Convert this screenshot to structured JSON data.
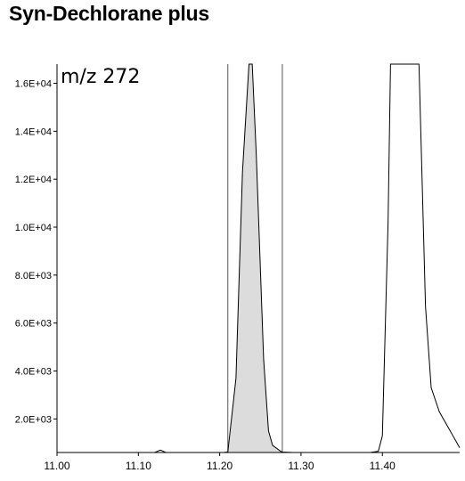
{
  "chart_data": {
    "type": "line",
    "title": "Syn-Dechlorane plus",
    "annotation": "m/z 272",
    "xlabel": "",
    "ylabel": "",
    "xlim": [
      11.0,
      11.495
    ],
    "ylim": [
      600,
      16800
    ],
    "x_ticks": [
      {
        "value": 11.0,
        "label": "11.00"
      },
      {
        "value": 11.1,
        "label": "11.10"
      },
      {
        "value": 11.2,
        "label": "11.20"
      },
      {
        "value": 11.3,
        "label": "11.30"
      },
      {
        "value": 11.4,
        "label": "11.40"
      }
    ],
    "y_ticks": [
      {
        "value": 2000,
        "label": "2.0E+03"
      },
      {
        "value": 4000,
        "label": "4.0E+03"
      },
      {
        "value": 6000,
        "label": "6.0E+03"
      },
      {
        "value": 8000,
        "label": "8.0E+03"
      },
      {
        "value": 10000,
        "label": "1.0E+04"
      },
      {
        "value": 12000,
        "label": "1.2E+04"
      },
      {
        "value": 14000,
        "label": "1.4E+04"
      },
      {
        "value": 16000,
        "label": "1.6E+04"
      }
    ],
    "integration_bounds": [
      11.21,
      11.277
    ],
    "series": [
      {
        "x": [
          11.0,
          11.05,
          11.1,
          11.12,
          11.127,
          11.134,
          11.15,
          11.18,
          11.205,
          11.21,
          11.22,
          11.228,
          11.236,
          11.24,
          11.245,
          11.254,
          11.26,
          11.265,
          11.275,
          11.277,
          11.29,
          11.32,
          11.35,
          11.385,
          11.395,
          11.4,
          11.407,
          11.41,
          11.417,
          11.43,
          11.44,
          11.445,
          11.453,
          11.46,
          11.47,
          11.48,
          11.49,
          11.495
        ],
        "y": [
          600,
          600,
          600,
          600,
          700,
          600,
          600,
          600,
          600,
          620,
          3700,
          12300,
          16800,
          16800,
          13000,
          4500,
          1500,
          900,
          650,
          620,
          600,
          600,
          600,
          600,
          650,
          1300,
          10200,
          16800,
          16800,
          16800,
          16800,
          16800,
          6700,
          3300,
          2300,
          1700,
          1100,
          800
        ]
      }
    ],
    "shaded_region": {
      "x": [
        11.21,
        11.22,
        11.228,
        11.236,
        11.24,
        11.245,
        11.254,
        11.26,
        11.265,
        11.275,
        11.277
      ],
      "y": [
        620,
        3700,
        12300,
        16800,
        16800,
        13000,
        4500,
        1500,
        900,
        650,
        620
      ]
    },
    "colors": {
      "line": "#000000",
      "fill": "#dcdcdc",
      "axis": "#000000",
      "marker": "#555555"
    },
    "grid": false,
    "legend": "none"
  }
}
